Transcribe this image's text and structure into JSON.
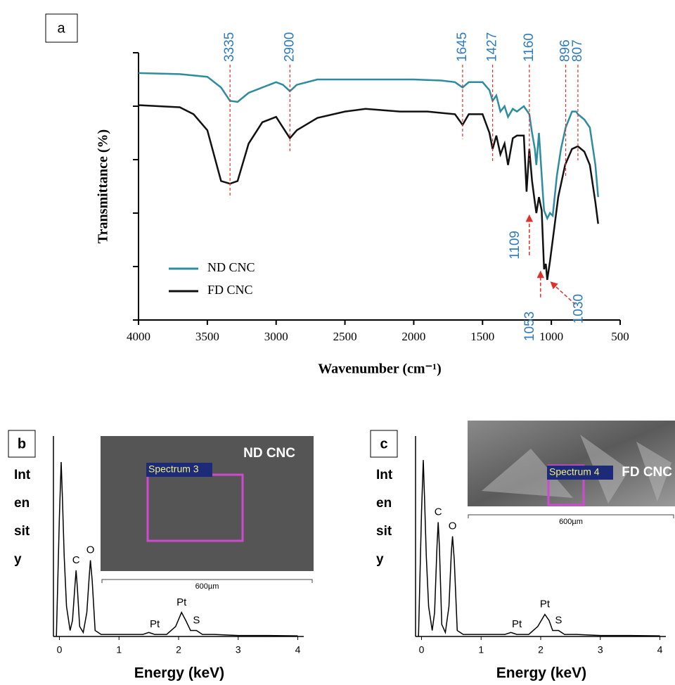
{
  "chart_data": [
    {
      "type": "line",
      "panel": "a",
      "x_label": "Wavenumber (cm⁻¹)",
      "y_label": "Transmittance  (%)",
      "xlim": [
        4000,
        500
      ],
      "xticks": [
        4000,
        3500,
        3000,
        2500,
        2000,
        1500,
        1000,
        500
      ],
      "ylim": [
        0,
        5
      ],
      "yticks": [
        0,
        1,
        2,
        3,
        4,
        5
      ],
      "legend": "lower left",
      "series": [
        {
          "name": "ND CNC",
          "color": "#2e8ca0",
          "x": [
            4000,
            3700,
            3500,
            3400,
            3335,
            3280,
            3200,
            3000,
            2950,
            2900,
            2850,
            2700,
            2500,
            2300,
            2000,
            1800,
            1700,
            1645,
            1600,
            1500,
            1450,
            1427,
            1400,
            1370,
            1340,
            1315,
            1280,
            1250,
            1200,
            1160,
            1140,
            1120,
            1109,
            1090,
            1060,
            1053,
            1030,
            1010,
            990,
            960,
            930,
            896,
            850,
            820,
            807,
            760,
            720,
            680,
            660
          ],
          "values": [
            4.62,
            4.6,
            4.55,
            4.35,
            4.1,
            4.08,
            4.25,
            4.45,
            4.4,
            4.28,
            4.4,
            4.5,
            4.5,
            4.5,
            4.5,
            4.48,
            4.45,
            4.35,
            4.45,
            4.45,
            4.3,
            4.1,
            4.2,
            3.9,
            4.0,
            3.8,
            3.95,
            3.9,
            4.0,
            3.85,
            3.5,
            3.2,
            2.9,
            3.5,
            2.3,
            2.05,
            1.9,
            2.0,
            1.95,
            2.7,
            3.2,
            3.6,
            3.9,
            3.9,
            3.85,
            3.75,
            3.6,
            2.9,
            2.3
          ]
        },
        {
          "name": "FD CNC",
          "color": "#111111",
          "x": [
            4000,
            3700,
            3600,
            3500,
            3400,
            3335,
            3280,
            3200,
            3100,
            3000,
            2950,
            2900,
            2850,
            2700,
            2500,
            2350,
            2100,
            1900,
            1700,
            1645,
            1600,
            1500,
            1450,
            1427,
            1400,
            1370,
            1340,
            1315,
            1280,
            1250,
            1200,
            1180,
            1160,
            1140,
            1120,
            1109,
            1090,
            1070,
            1053,
            1040,
            1030,
            1010,
            980,
            950,
            900,
            850,
            807,
            760,
            720,
            680,
            660
          ],
          "values": [
            4.02,
            3.98,
            3.85,
            3.55,
            2.6,
            2.55,
            2.6,
            3.3,
            3.7,
            3.8,
            3.6,
            3.4,
            3.55,
            3.78,
            3.9,
            3.95,
            3.9,
            3.9,
            3.85,
            3.65,
            3.85,
            3.85,
            3.5,
            3.2,
            3.45,
            3.1,
            3.3,
            2.9,
            3.4,
            3.45,
            3.45,
            2.4,
            3.2,
            2.6,
            2.2,
            2.0,
            2.3,
            2.05,
            0.95,
            1.05,
            0.75,
            1.1,
            1.7,
            2.3,
            2.9,
            3.2,
            3.25,
            3.15,
            2.9,
            2.2,
            1.8
          ]
        }
      ],
      "peaks": [
        3335,
        2900,
        1645,
        1427,
        1160,
        896,
        807
      ],
      "arrow_peaks": [
        1109,
        1053,
        1030
      ]
    },
    {
      "type": "line",
      "panel": "b",
      "x_label": "Energy (keV)",
      "y_label": [
        "Int",
        "en",
        "sit",
        "y"
      ],
      "xlim": [
        -0.1,
        4.1
      ],
      "xticks": [
        0,
        1,
        2,
        3,
        4
      ],
      "ylim": [
        0,
        100
      ],
      "x": [
        -0.05,
        0,
        0.03,
        0.05,
        0.08,
        0.12,
        0.18,
        0.22,
        0.26,
        0.28,
        0.3,
        0.34,
        0.4,
        0.46,
        0.5,
        0.52,
        0.55,
        0.6,
        0.7,
        1.0,
        1.4,
        1.5,
        1.6,
        1.8,
        1.95,
        2.05,
        2.12,
        2.2,
        2.3,
        2.4,
        2.6,
        3.0,
        3.5,
        4.0
      ],
      "values": [
        0,
        60,
        87,
        70,
        40,
        15,
        3,
        8,
        25,
        33,
        25,
        5,
        2,
        12,
        30,
        38,
        28,
        3,
        1,
        1,
        1,
        2,
        1,
        1,
        5,
        12,
        8,
        3,
        3,
        1,
        1,
        0.5,
        0.5,
        0.3
      ],
      "peak_labels": [
        {
          "label": "C",
          "x": 0.28
        },
        {
          "label": "O",
          "x": 0.52
        },
        {
          "label": "Pt",
          "x": 1.6
        },
        {
          "label": "Pt",
          "x": 2.05
        },
        {
          "label": "S",
          "x": 2.3
        }
      ],
      "inset": {
        "title": "ND CNC",
        "region_label": "Spectrum 3",
        "scale_bar": "600µm"
      }
    },
    {
      "type": "line",
      "panel": "c",
      "x_label": "Energy (keV)",
      "y_label": [
        "Int",
        "en",
        "sit",
        "y"
      ],
      "xlim": [
        -0.1,
        4.1
      ],
      "xticks": [
        0,
        1,
        2,
        3,
        4
      ],
      "ylim": [
        0,
        100
      ],
      "x": [
        -0.05,
        0,
        0.03,
        0.05,
        0.08,
        0.12,
        0.18,
        0.22,
        0.26,
        0.28,
        0.3,
        0.34,
        0.4,
        0.46,
        0.5,
        0.52,
        0.55,
        0.6,
        0.7,
        1.0,
        1.4,
        1.5,
        1.6,
        1.8,
        1.95,
        2.07,
        2.14,
        2.2,
        2.3,
        2.4,
        2.6,
        3.0,
        3.5,
        4.0
      ],
      "values": [
        0,
        62,
        88,
        70,
        40,
        15,
        3,
        12,
        45,
        57,
        45,
        6,
        2,
        15,
        42,
        50,
        38,
        3,
        1,
        1,
        1,
        2,
        1,
        1,
        5,
        11,
        8,
        3,
        3,
        1,
        1,
        0.5,
        0.5,
        0.3
      ],
      "peak_labels": [
        {
          "label": "C",
          "x": 0.28
        },
        {
          "label": "O",
          "x": 0.52
        },
        {
          "label": "Pt",
          "x": 1.6
        },
        {
          "label": "Pt",
          "x": 2.07
        },
        {
          "label": "S",
          "x": 2.3
        }
      ],
      "inset": {
        "title": "FD CNC",
        "region_label": "Spectrum 4",
        "scale_bar": "600µm"
      }
    }
  ]
}
